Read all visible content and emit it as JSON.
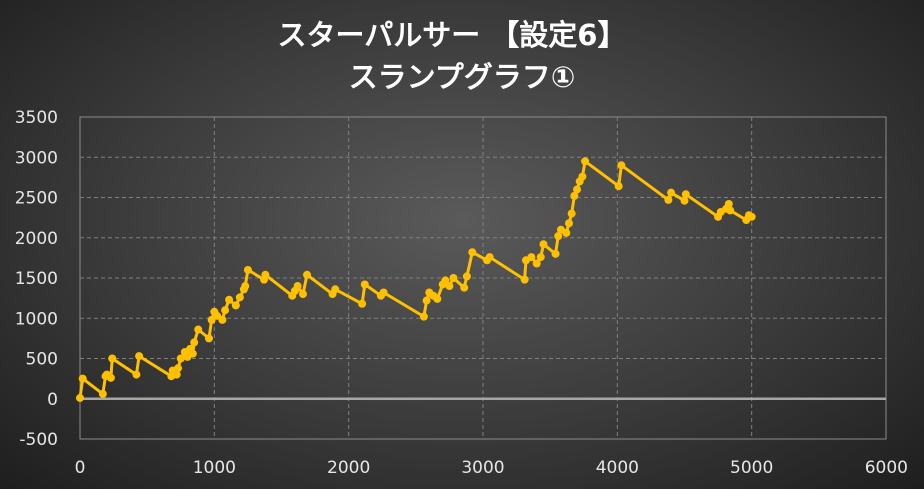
{
  "chart_data": {
    "type": "line",
    "title": "スターパルサー 【設定6】",
    "subtitle": "スランプグラフ①",
    "xlim": [
      0,
      6000
    ],
    "ylim": [
      -500,
      3500
    ],
    "x_ticks": [
      "0",
      "1000",
      "2000",
      "3000",
      "4000",
      "5000",
      "6000"
    ],
    "y_ticks": [
      "3500",
      "3000",
      "2500",
      "2000",
      "1500",
      "1000",
      "500",
      "0",
      "-500"
    ],
    "grid": true,
    "legend": "none",
    "colors": {
      "line": "#ffc000",
      "zero_line": "#a6a6a6",
      "grid": "#808080",
      "background": "#404040"
    },
    "series": [
      {
        "points": [
          [
            0,
            10
          ],
          [
            20,
            250
          ],
          [
            170,
            60
          ],
          [
            190,
            280
          ],
          [
            200,
            300
          ],
          [
            230,
            260
          ],
          [
            240,
            500
          ],
          [
            420,
            300
          ],
          [
            440,
            530
          ],
          [
            680,
            280
          ],
          [
            690,
            350
          ],
          [
            720,
            300
          ],
          [
            730,
            380
          ],
          [
            750,
            500
          ],
          [
            780,
            580
          ],
          [
            800,
            520
          ],
          [
            820,
            620
          ],
          [
            840,
            560
          ],
          [
            850,
            700
          ],
          [
            880,
            860
          ],
          [
            960,
            750
          ],
          [
            980,
            980
          ],
          [
            1000,
            1080
          ],
          [
            1020,
            1030
          ],
          [
            1060,
            980
          ],
          [
            1080,
            1100
          ],
          [
            1110,
            1230
          ],
          [
            1160,
            1160
          ],
          [
            1190,
            1260
          ],
          [
            1220,
            1360
          ],
          [
            1230,
            1400
          ],
          [
            1250,
            1600
          ],
          [
            1370,
            1480
          ],
          [
            1380,
            1540
          ],
          [
            1580,
            1280
          ],
          [
            1600,
            1340
          ],
          [
            1620,
            1400
          ],
          [
            1660,
            1300
          ],
          [
            1690,
            1540
          ],
          [
            1880,
            1300
          ],
          [
            1900,
            1360
          ],
          [
            2100,
            1180
          ],
          [
            2120,
            1420
          ],
          [
            2240,
            1280
          ],
          [
            2260,
            1320
          ],
          [
            2560,
            1020
          ],
          [
            2580,
            1220
          ],
          [
            2600,
            1320
          ],
          [
            2630,
            1280
          ],
          [
            2660,
            1240
          ],
          [
            2700,
            1420
          ],
          [
            2720,
            1470
          ],
          [
            2750,
            1400
          ],
          [
            2780,
            1500
          ],
          [
            2860,
            1380
          ],
          [
            2880,
            1520
          ],
          [
            2920,
            1820
          ],
          [
            3030,
            1720
          ],
          [
            3050,
            1760
          ],
          [
            3310,
            1480
          ],
          [
            3320,
            1720
          ],
          [
            3360,
            1760
          ],
          [
            3400,
            1680
          ],
          [
            3430,
            1760
          ],
          [
            3450,
            1920
          ],
          [
            3540,
            1800
          ],
          [
            3560,
            2020
          ],
          [
            3580,
            2100
          ],
          [
            3620,
            2060
          ],
          [
            3640,
            2180
          ],
          [
            3660,
            2300
          ],
          [
            3680,
            2520
          ],
          [
            3700,
            2600
          ],
          [
            3720,
            2700
          ],
          [
            3740,
            2760
          ],
          [
            3760,
            2950
          ],
          [
            4010,
            2640
          ],
          [
            4030,
            2900
          ],
          [
            4380,
            2470
          ],
          [
            4400,
            2560
          ],
          [
            4500,
            2460
          ],
          [
            4510,
            2540
          ],
          [
            4750,
            2260
          ],
          [
            4770,
            2320
          ],
          [
            4810,
            2360
          ],
          [
            4830,
            2420
          ],
          [
            4840,
            2340
          ],
          [
            4960,
            2220
          ],
          [
            4980,
            2280
          ],
          [
            5000,
            2260
          ]
        ]
      }
    ]
  }
}
